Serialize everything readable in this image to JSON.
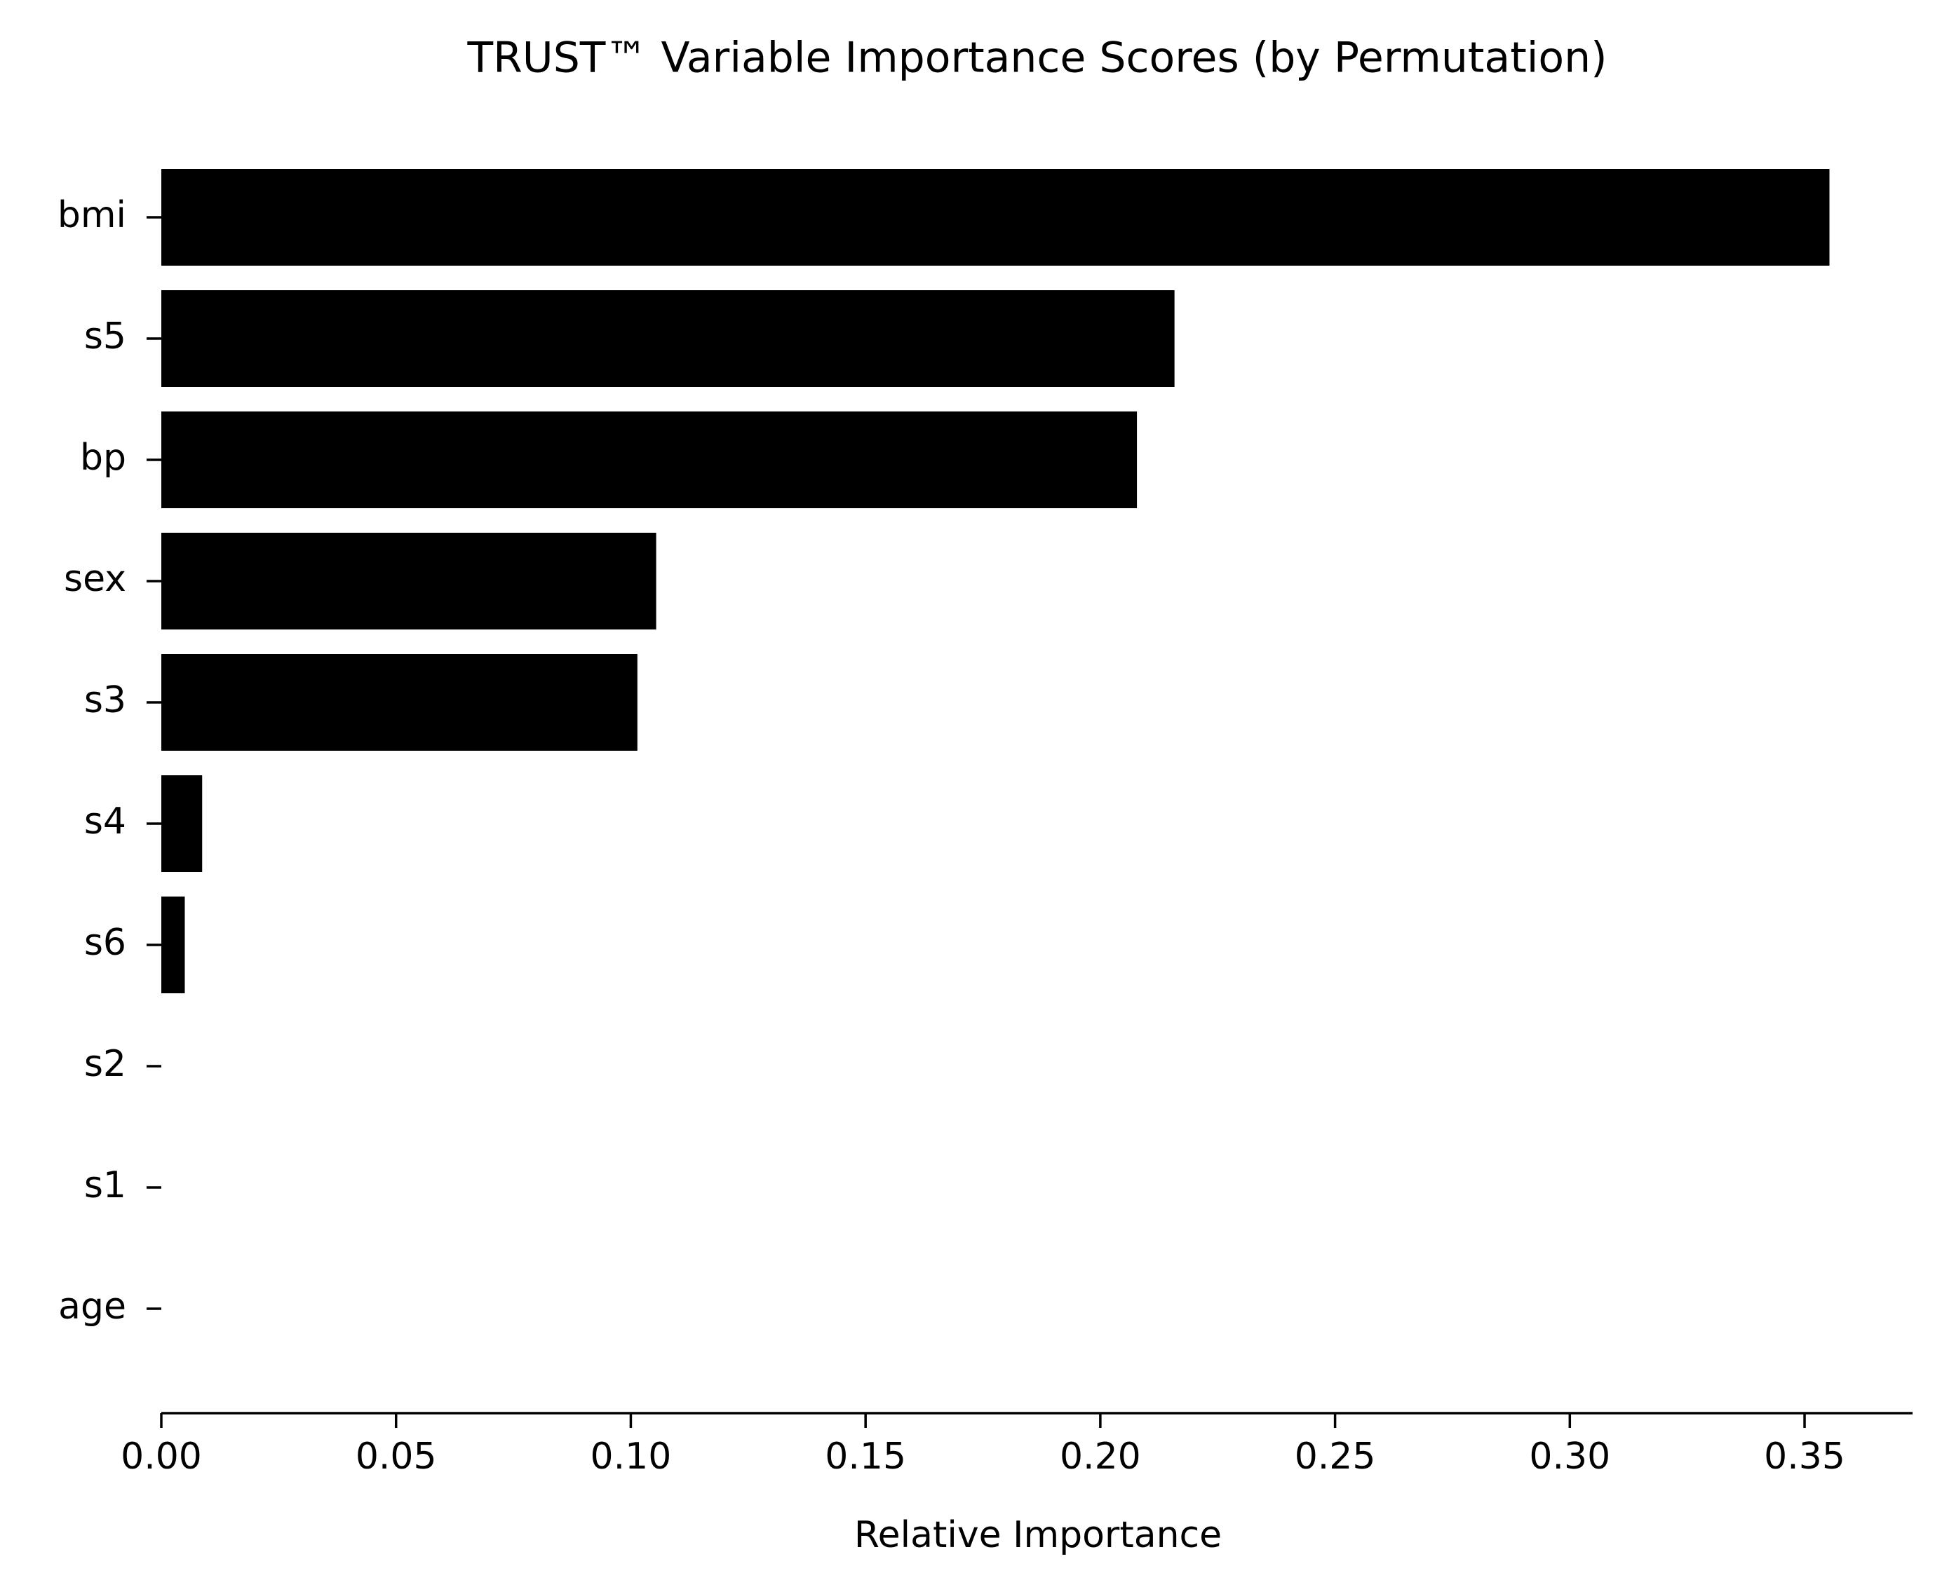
{
  "chart_data": {
    "type": "barh",
    "title": "TRUST™ Variable Importance Scores (by Permutation)",
    "x_label": "Relative Importance",
    "categories": [
      "bmi",
      "s5",
      "bp",
      "sex",
      "s3",
      "s4",
      "s6",
      "s2",
      "s1",
      "age"
    ],
    "values": [
      0.3553,
      0.2158,
      0.2078,
      0.1054,
      0.1014,
      0.0087,
      0.005,
      0,
      0,
      0
    ],
    "color": "#000000",
    "xlim": [
      0,
      0.373
    ],
    "xticks": [
      {
        "value": 0,
        "label": "0.00"
      },
      {
        "value": 0.05,
        "label": "0.05"
      },
      {
        "value": 0.1,
        "label": "0.10"
      },
      {
        "value": 0.15,
        "label": "0.15"
      },
      {
        "value": 0.2,
        "label": "0.20"
      },
      {
        "value": 0.25,
        "label": "0.25"
      },
      {
        "value": 0.3,
        "label": "0.30"
      },
      {
        "value": 0.35,
        "label": "0.35"
      }
    ]
  }
}
